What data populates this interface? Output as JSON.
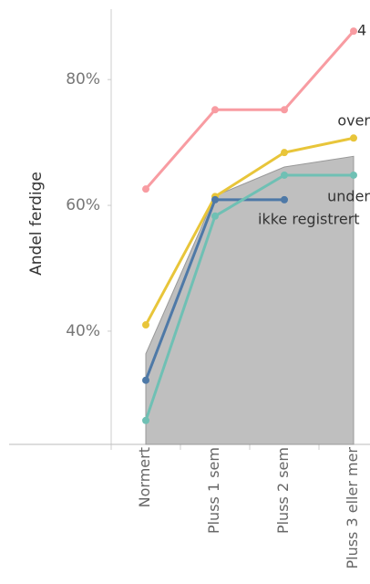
{
  "chart_data": {
    "type": "line",
    "y_label": "Andel ferdige",
    "categories": [
      "Normert",
      "Pluss 1 sem",
      "Pluss 2 sem",
      "Pluss 3 eller mer"
    ],
    "ylim": [
      22,
      91.2
    ],
    "yticks": [
      {
        "value": 40,
        "label": "40%"
      },
      {
        "value": 60,
        "label": "60%"
      },
      {
        "value": 80,
        "label": "80%"
      }
    ],
    "area": {
      "color": "#bfbfbf",
      "values": [
        36.4,
        61.5,
        66.1,
        67.8
      ]
    },
    "series": [
      {
        "name": "over",
        "color": "#e8c53a",
        "values": [
          41.0,
          61.4,
          68.4,
          70.7
        ]
      },
      {
        "name": "ikke registrert",
        "color": "#4e79a7",
        "values": [
          32.2,
          60.9,
          60.9,
          null
        ]
      },
      {
        "name": "under",
        "color": "#6fc0b4",
        "values": [
          25.8,
          58.3,
          64.8,
          64.8
        ]
      },
      {
        "name": "4",
        "color": "#f89ca2",
        "values": [
          62.6,
          75.2,
          75.2,
          87.7
        ]
      }
    ]
  }
}
